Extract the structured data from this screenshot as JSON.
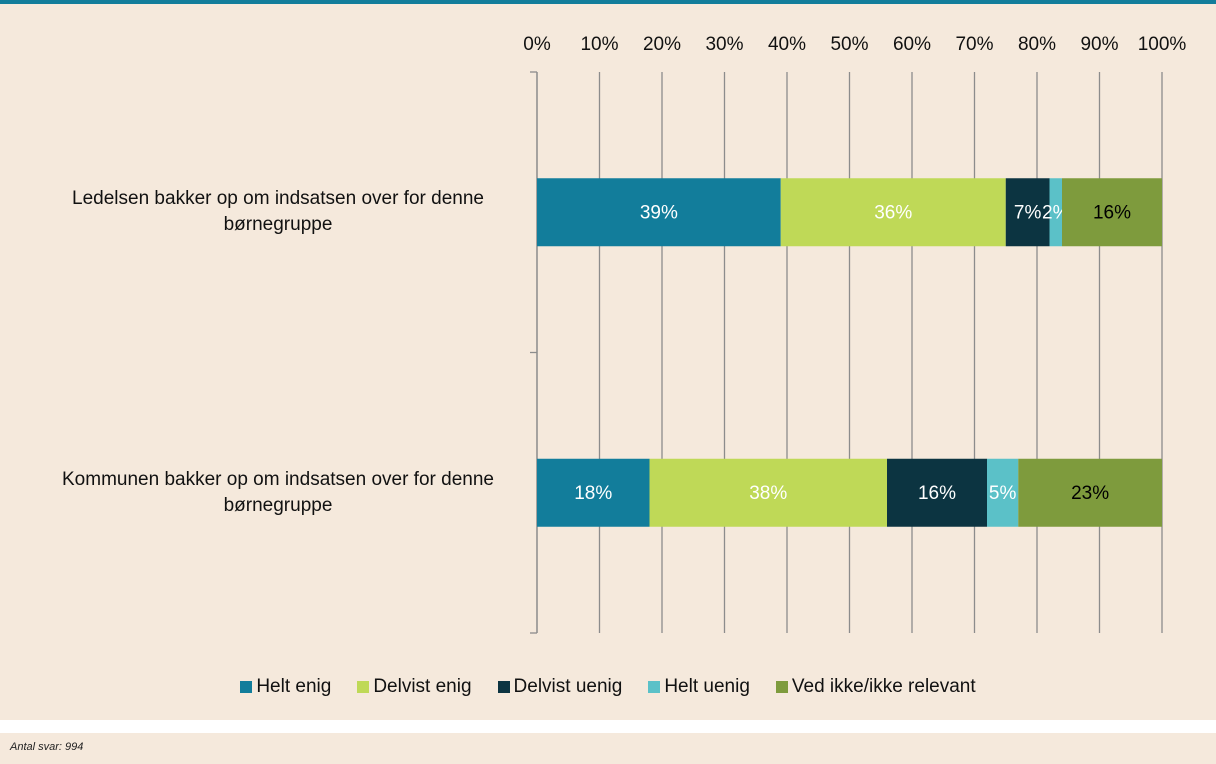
{
  "chart_data": {
    "type": "stacked_barh",
    "categories": [
      "Ledelsen bakker op om indsatsen over for denne børnegruppe",
      "Kommunen bakker op om indsatsen over for denne børnegruppe"
    ],
    "series": [
      {
        "name": "Helt enig",
        "color": "#127d9b",
        "label_color": "#ffffff",
        "values": [
          39,
          18
        ],
        "value_labels": [
          "39%",
          "18%"
        ]
      },
      {
        "name": "Delvist enig",
        "color": "#bfd957",
        "label_color": "#ffffff",
        "values": [
          36,
          38
        ],
        "value_labels": [
          "36%",
          "38%"
        ]
      },
      {
        "name": "Delvist uenig",
        "color": "#0c3441",
        "label_color": "#ffffff",
        "values": [
          7,
          16
        ],
        "value_labels": [
          "7%",
          "16%"
        ]
      },
      {
        "name": "Helt uenig",
        "color": "#5bc1c8",
        "label_color": "#ffffff",
        "values": [
          2,
          5
        ],
        "value_labels": [
          "2%",
          "5%"
        ]
      },
      {
        "name": "Ved ikke/ikke relevant",
        "color": "#7e9b3d",
        "label_color": "#000000",
        "values": [
          16,
          23
        ],
        "value_labels": [
          "16%",
          "23%"
        ]
      }
    ],
    "xlim": [
      0,
      100
    ],
    "xticks": [
      {
        "value": 0,
        "label": "0%"
      },
      {
        "value": 10,
        "label": "10%"
      },
      {
        "value": 20,
        "label": "20%"
      },
      {
        "value": 30,
        "label": "30%"
      },
      {
        "value": 40,
        "label": "40%"
      },
      {
        "value": 50,
        "label": "50%"
      },
      {
        "value": 60,
        "label": "60%"
      },
      {
        "value": 70,
        "label": "70%"
      },
      {
        "value": 80,
        "label": "80%"
      },
      {
        "value": 90,
        "label": "90%"
      },
      {
        "value": 100,
        "label": "100%"
      }
    ],
    "grid": true,
    "legend": "bottom",
    "note": "Antal svar: 994"
  }
}
